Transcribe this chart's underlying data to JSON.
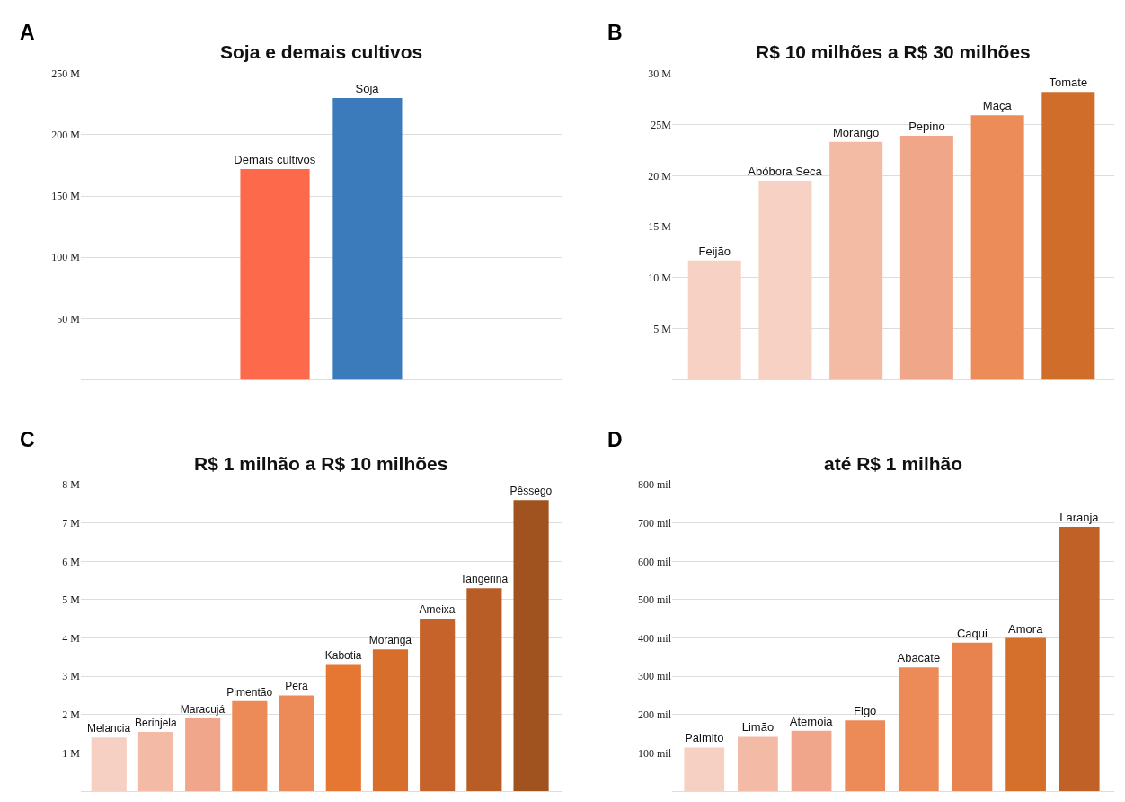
{
  "chart_data": [
    {
      "type": "bar",
      "title": "Soja e demais cultivos",
      "annotations": [
        "A"
      ],
      "categories": [
        "Demais cultivos",
        "Soja"
      ],
      "values": [
        172,
        230
      ],
      "colors": [
        "#fc694b",
        "#3b7bbb"
      ],
      "ylim": [
        0,
        250
      ],
      "yticks": [
        {
          "value": 50,
          "label": "50 M"
        },
        {
          "value": 100,
          "label": "100 M"
        },
        {
          "value": 150,
          "label": "150 M"
        },
        {
          "value": 200,
          "label": "200 M"
        },
        {
          "value": 250,
          "label": "250 M"
        }
      ],
      "grid": "y",
      "tick_labels": "y"
    },
    {
      "type": "bar",
      "title": "R$ 10 milhões a R$ 30 milhões",
      "annotations": [
        "B"
      ],
      "categories": [
        "Feijão",
        "Abóbora Seca",
        "Morango",
        "Pepino",
        "Maçã",
        "Tomate"
      ],
      "values": [
        11.7,
        19.5,
        23.3,
        23.9,
        25.9,
        28.2
      ],
      "colors": [
        "#f6d1c4",
        "#f6d1c4",
        "#f3baa4",
        "#f0a789",
        "#ec8c58",
        "#d16d2b"
      ],
      "ylim": [
        0,
        30
      ],
      "yticks": [
        {
          "value": 5,
          "label": "5 M"
        },
        {
          "value": 10,
          "label": "10 M"
        },
        {
          "value": 15,
          "label": "15 M"
        },
        {
          "value": 20,
          "label": "20 M"
        },
        {
          "value": 25,
          "label": "25M"
        },
        {
          "value": 30,
          "label": "30 M"
        }
      ],
      "grid": "y",
      "tick_labels": "y"
    },
    {
      "type": "bar",
      "title": "R$ 1 milhão a R$ 10 milhões",
      "annotations": [
        "C"
      ],
      "categories": [
        "Melancia",
        "Berinjela",
        "Maracujá",
        "Pimentão",
        "Pera",
        "Kabotia",
        "Moranga",
        "Ameixa",
        "Tangerina",
        "Pêssego"
      ],
      "values": [
        1.4,
        1.55,
        1.9,
        2.35,
        2.5,
        3.3,
        3.7,
        4.5,
        5.3,
        7.6
      ],
      "colors": [
        "#f6d0c3",
        "#f3baa5",
        "#f0a68a",
        "#ec8b58",
        "#ec8b58",
        "#e57732",
        "#d76e2c",
        "#c6632a",
        "#b95d27",
        "#a0521f"
      ],
      "ylim": [
        0,
        8
      ],
      "yticks": [
        {
          "value": 1,
          "label": "1 M"
        },
        {
          "value": 2,
          "label": "2 M"
        },
        {
          "value": 3,
          "label": "3 M"
        },
        {
          "value": 4,
          "label": "4 M"
        },
        {
          "value": 5,
          "label": "5 M"
        },
        {
          "value": 6,
          "label": "6 M"
        },
        {
          "value": 7,
          "label": "7 M"
        },
        {
          "value": 8,
          "label": "8 M"
        }
      ],
      "grid": "y",
      "tick_labels": "y"
    },
    {
      "type": "bar",
      "title": "até R$ 1 milhão",
      "annotations": [
        "D"
      ],
      "categories": [
        "Palmito",
        "Limão",
        "Atemoia",
        "Figo",
        "Abacate",
        "Caqui",
        "Amora",
        "Laranja"
      ],
      "values": [
        114,
        142,
        158,
        185,
        323,
        388,
        400,
        690
      ],
      "colors": [
        "#f6d0c3",
        "#f3baa5",
        "#f0a68a",
        "#ec8b58",
        "#ec8b58",
        "#e8834f",
        "#d4702c",
        "#c06228"
      ],
      "ylim": [
        0,
        800
      ],
      "yticks": [
        {
          "value": 100,
          "label": "100 mil"
        },
        {
          "value": 200,
          "label": "200 mil"
        },
        {
          "value": 300,
          "label": "300 mil"
        },
        {
          "value": 400,
          "label": "400 mil"
        },
        {
          "value": 500,
          "label": "500 mil"
        },
        {
          "value": 600,
          "label": "600 mil"
        },
        {
          "value": 700,
          "label": "700 mil"
        },
        {
          "value": 800,
          "label": "800 mil"
        }
      ],
      "grid": "y",
      "tick_labels": "y"
    }
  ]
}
